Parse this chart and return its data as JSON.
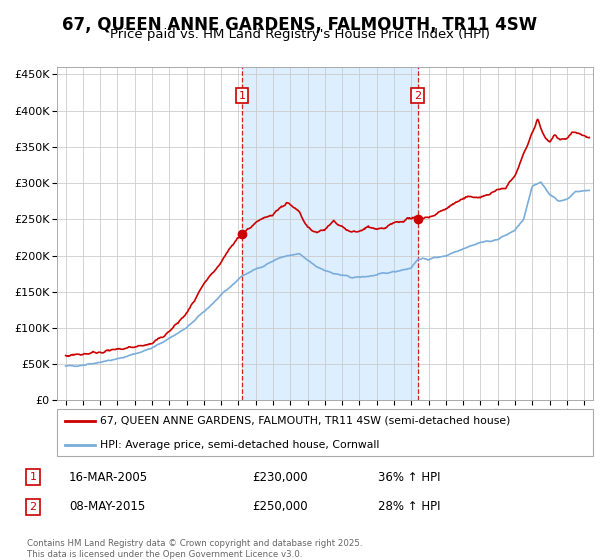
{
  "title": "67, QUEEN ANNE GARDENS, FALMOUTH, TR11 4SW",
  "subtitle": "Price paid vs. HM Land Registry's House Price Index (HPI)",
  "legend_line1": "67, QUEEN ANNE GARDENS, FALMOUTH, TR11 4SW (semi-detached house)",
  "legend_line2": "HPI: Average price, semi-detached house, Cornwall",
  "footnote": "Contains HM Land Registry data © Crown copyright and database right 2025.\nThis data is licensed under the Open Government Licence v3.0.",
  "sale1_label": "1",
  "sale1_date": "16-MAR-2005",
  "sale1_price": "£230,000",
  "sale1_hpi": "36% ↑ HPI",
  "sale2_label": "2",
  "sale2_date": "08-MAY-2015",
  "sale2_price": "£250,000",
  "sale2_hpi": "28% ↑ HPI",
  "sale1_x": 2005.21,
  "sale2_x": 2015.36,
  "sale1_y": 230000,
  "sale2_y": 250000,
  "shaded_start": 2005.21,
  "shaded_end": 2015.36,
  "ylim": [
    0,
    460000
  ],
  "xlim": [
    1994.5,
    2025.5
  ],
  "red_color": "#cc0000",
  "blue_color": "#7aaddb",
  "shade_color": "#ddeeff",
  "grid_color": "#cccccc",
  "background_color": "#ffffff",
  "title_fontsize": 12,
  "subtitle_fontsize": 10,
  "yticks": [
    0,
    50000,
    100000,
    150000,
    200000,
    250000,
    300000,
    350000,
    400000,
    450000
  ]
}
